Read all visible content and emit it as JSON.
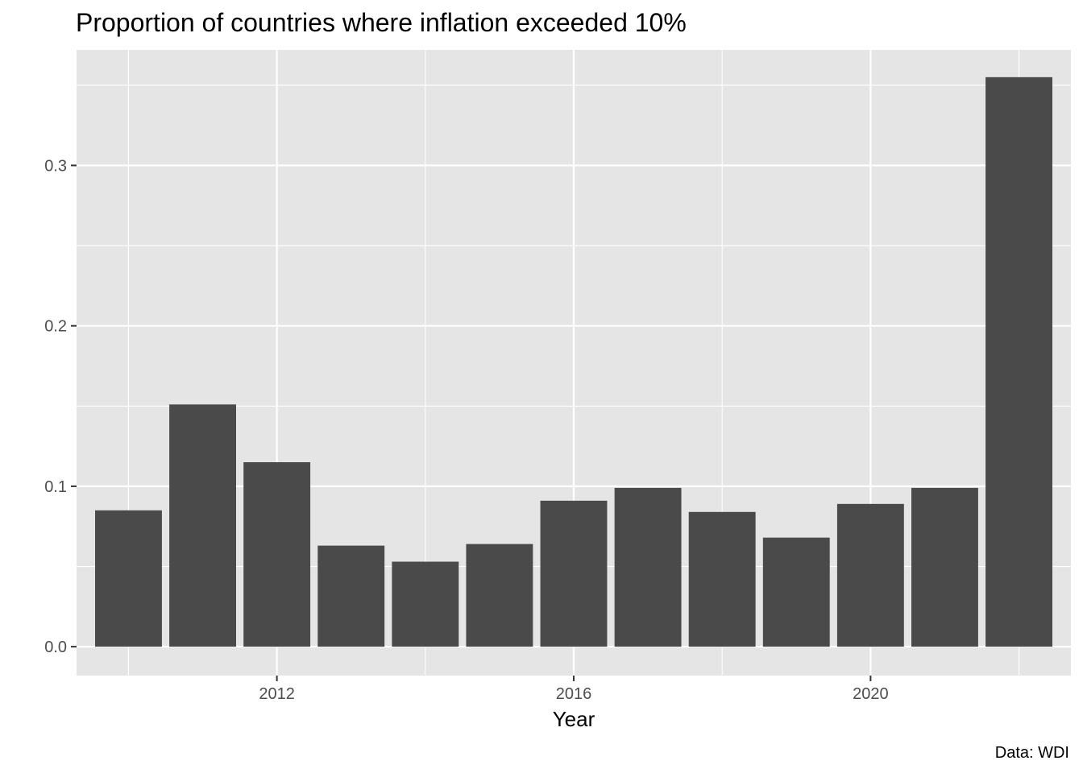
{
  "chart_data": {
    "type": "bar",
    "title": "Proportion of countries where inflation exceeded 10%",
    "xlabel": "Year",
    "ylabel": "",
    "caption": "Data: WDI",
    "x": [
      2010,
      2011,
      2012,
      2013,
      2014,
      2015,
      2016,
      2017,
      2018,
      2019,
      2020,
      2021,
      2022
    ],
    "values": [
      0.085,
      0.151,
      0.115,
      0.063,
      0.053,
      0.064,
      0.091,
      0.099,
      0.084,
      0.068,
      0.089,
      0.099,
      0.355
    ],
    "xlim": [
      2009.3,
      2022.7
    ],
    "ylim": [
      -0.018,
      0.372
    ],
    "x_ticks": [
      2012,
      2016,
      2020
    ],
    "x_tick_labels": [
      "2012",
      "2016",
      "2020"
    ],
    "y_ticks": [
      0.0,
      0.1,
      0.2,
      0.3
    ],
    "y_tick_labels": [
      "0.0",
      "0.1",
      "0.2",
      "0.3"
    ],
    "grid": true,
    "legend": "none",
    "colors": {
      "bar": "#4a4a4a",
      "panel": "#e5e5e5",
      "grid": "#ffffff",
      "text": "#000000",
      "tick_text": "#4d4d4d"
    }
  }
}
